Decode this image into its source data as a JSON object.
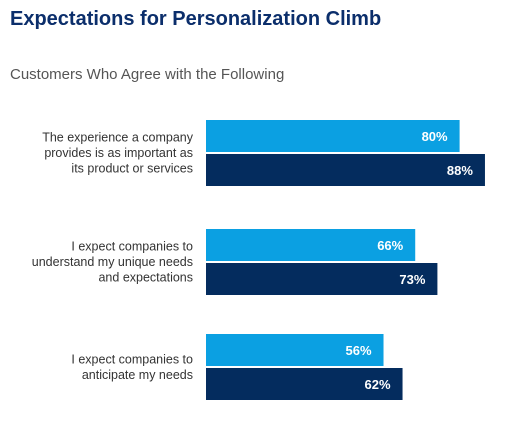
{
  "title": "Expectations for Personalization Climb",
  "subtitle": "Customers Who Agree with the Following",
  "colors": {
    "series1": "#0ba0e2",
    "series2": "#042c5e"
  },
  "chart_data": {
    "type": "bar",
    "orientation": "horizontal",
    "title": "Expectations for Personalization Climb",
    "subtitle": "Customers Who Agree with the Following",
    "categories": [
      [
        "The experience a company",
        "provides is as important as",
        "its product or services"
      ],
      [
        "I expect companies to",
        "understand my unique needs",
        "and expectations"
      ],
      [
        "I expect companies to",
        "anticipate my needs"
      ]
    ],
    "series": [
      {
        "values": [
          80,
          66,
          56
        ],
        "labels": [
          "80%",
          "66%",
          "56%"
        ]
      },
      {
        "values": [
          88,
          73,
          62
        ],
        "labels": [
          "88%",
          "73%",
          "62%"
        ]
      }
    ],
    "xlim": [
      0,
      100
    ],
    "grid": false,
    "legend": "none"
  }
}
